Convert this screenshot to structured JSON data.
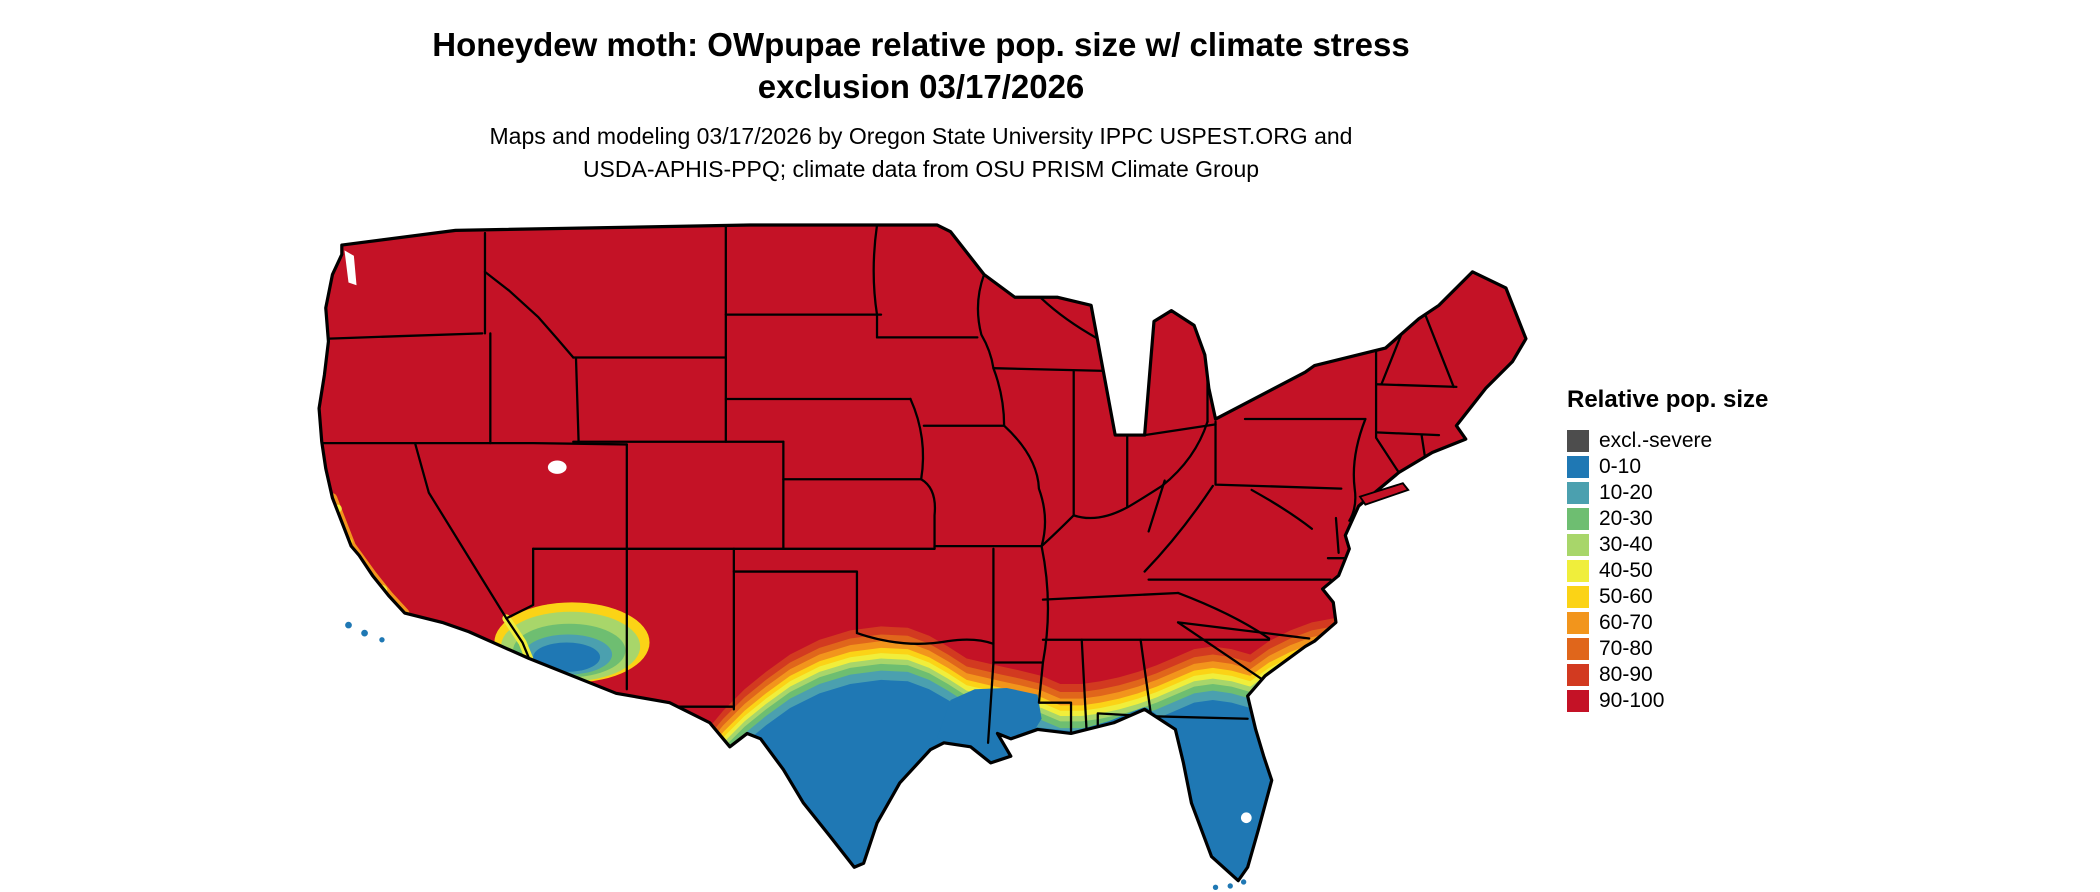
{
  "title": {
    "line1": "Honeydew moth: OWpupae relative pop. size w/ climate stress",
    "line2": "exclusion 03/17/2026"
  },
  "subtitle": {
    "line1": "Maps and modeling 03/17/2026 by Oregon State University IPPC USPEST.ORG and",
    "line2": "USDA-APHIS-PPQ; climate data from OSU PRISM Climate Group"
  },
  "legend": {
    "title": "Relative pop. size",
    "items": [
      {
        "label": "excl.-severe",
        "color": "#4D4D4D"
      },
      {
        "label": "0-10",
        "color": "#1F78B4"
      },
      {
        "label": "10-20",
        "color": "#4BA0AF"
      },
      {
        "label": "20-30",
        "color": "#6EBE71"
      },
      {
        "label": "30-40",
        "color": "#A8D66A"
      },
      {
        "label": "40-50",
        "color": "#F0EE3B"
      },
      {
        "label": "50-60",
        "color": "#FBD316"
      },
      {
        "label": "60-70",
        "color": "#F2951C"
      },
      {
        "label": "70-80",
        "color": "#E0661B"
      },
      {
        "label": "80-90",
        "color": "#D23A20"
      },
      {
        "label": "90-100",
        "color": "#C41226"
      }
    ]
  },
  "map": {
    "region": "contiguous United States",
    "zones": [
      {
        "area": "most of the contiguous US",
        "class": "90-100"
      },
      {
        "area": "south Texas, Gulf Coast, southern Louisiana, Florida peninsula",
        "class": "0-10"
      },
      {
        "area": "southern Arizona border region",
        "class": "0-10 with 10-40 fringe"
      },
      {
        "area": "wavy transition band across the southern US",
        "class": "10-90 gradient"
      },
      {
        "area": "southern California coast",
        "class": "mixed 40-90 mottling"
      }
    ]
  }
}
